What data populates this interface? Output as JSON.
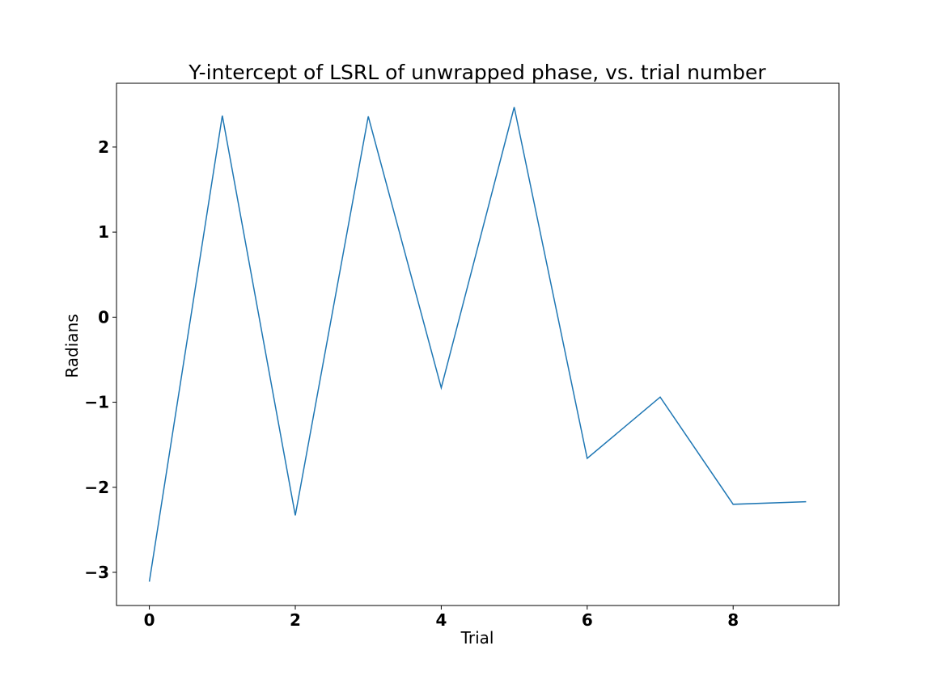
{
  "chart_data": {
    "type": "line",
    "title": "Y-intercept of LSRL of unwrapped phase, vs. trial number",
    "xlabel": "Trial",
    "ylabel": "Radians",
    "x": [
      0,
      1,
      2,
      3,
      4,
      5,
      6,
      7,
      8,
      9
    ],
    "series": [
      {
        "values": [
          -3.11,
          2.37,
          -2.33,
          2.36,
          -0.83,
          2.47,
          -1.66,
          -0.94,
          -2.2,
          -2.17
        ],
        "color": "#1f77b4"
      }
    ],
    "xlim": [
      -0.45,
      9.45
    ],
    "ylim": [
      -3.39,
      2.75
    ],
    "xticks": [
      0,
      2,
      4,
      6,
      8
    ],
    "xtick_labels": [
      "0",
      "2",
      "4",
      "6",
      "8"
    ],
    "yticks": [
      -3,
      -2,
      -1,
      0,
      1,
      2
    ],
    "ytick_labels": [
      "−3",
      "−2",
      "−1",
      "0",
      "1",
      "2"
    ],
    "grid": false,
    "legend": "none"
  }
}
